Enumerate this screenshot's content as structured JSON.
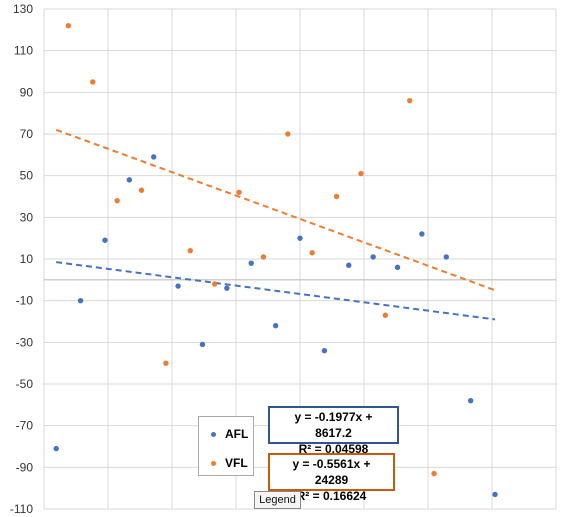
{
  "chart_data": {
    "type": "scatter",
    "title": "",
    "xlabel": "",
    "ylabel": "",
    "ylim": [
      -110,
      130
    ],
    "yticks": [
      130,
      110,
      90,
      70,
      50,
      30,
      10,
      -10,
      -30,
      -50,
      -70,
      -90,
      -110
    ],
    "grid": true,
    "legend_position": "bottom-center",
    "series": [
      {
        "name": "AFL",
        "color": "#4472c4",
        "points": [
          {
            "x": 1,
            "y": -81
          },
          {
            "x": 2,
            "y": -10
          },
          {
            "x": 3,
            "y": 19
          },
          {
            "x": 4,
            "y": 48
          },
          {
            "x": 5,
            "y": 59
          },
          {
            "x": 6,
            "y": -3
          },
          {
            "x": 7,
            "y": -31
          },
          {
            "x": 8,
            "y": -4
          },
          {
            "x": 9,
            "y": 8
          },
          {
            "x": 10,
            "y": -22
          },
          {
            "x": 11,
            "y": 20
          },
          {
            "x": 12,
            "y": -34
          },
          {
            "x": 13,
            "y": 7
          },
          {
            "x": 14,
            "y": 11
          },
          {
            "x": 15,
            "y": 6
          },
          {
            "x": 16,
            "y": 22
          },
          {
            "x": 17,
            "y": 11
          },
          {
            "x": 18,
            "y": -58
          },
          {
            "x": 19,
            "y": -103
          }
        ],
        "trendline": {
          "x_start": 1,
          "y_start": 8.5,
          "x_end": 19,
          "y_end": -19
        },
        "equation": "y = -0.1977x + 8617.2",
        "r_squared": "R² = 0.04598"
      },
      {
        "name": "VFL",
        "color": "#ed7d31",
        "points": [
          {
            "x": 1.5,
            "y": 122
          },
          {
            "x": 2.5,
            "y": 95
          },
          {
            "x": 3.5,
            "y": 38
          },
          {
            "x": 4.5,
            "y": 43
          },
          {
            "x": 5.5,
            "y": -40
          },
          {
            "x": 6.5,
            "y": 14
          },
          {
            "x": 7.5,
            "y": -2
          },
          {
            "x": 8.5,
            "y": 42
          },
          {
            "x": 9.5,
            "y": 11
          },
          {
            "x": 10.5,
            "y": 70
          },
          {
            "x": 11.5,
            "y": 13
          },
          {
            "x": 12.5,
            "y": 40
          },
          {
            "x": 13.5,
            "y": 51
          },
          {
            "x": 14.5,
            "y": -17
          },
          {
            "x": 15.5,
            "y": 86
          },
          {
            "x": 16.5,
            "y": -93
          }
        ],
        "trendline": {
          "x_start": 1,
          "y_start": 72,
          "x_end": 19,
          "y_end": -5
        },
        "equation": "y = -0.5561x + 24289",
        "r_squared": "R² = 0.16624"
      }
    ]
  },
  "legend_tag": "Legend"
}
